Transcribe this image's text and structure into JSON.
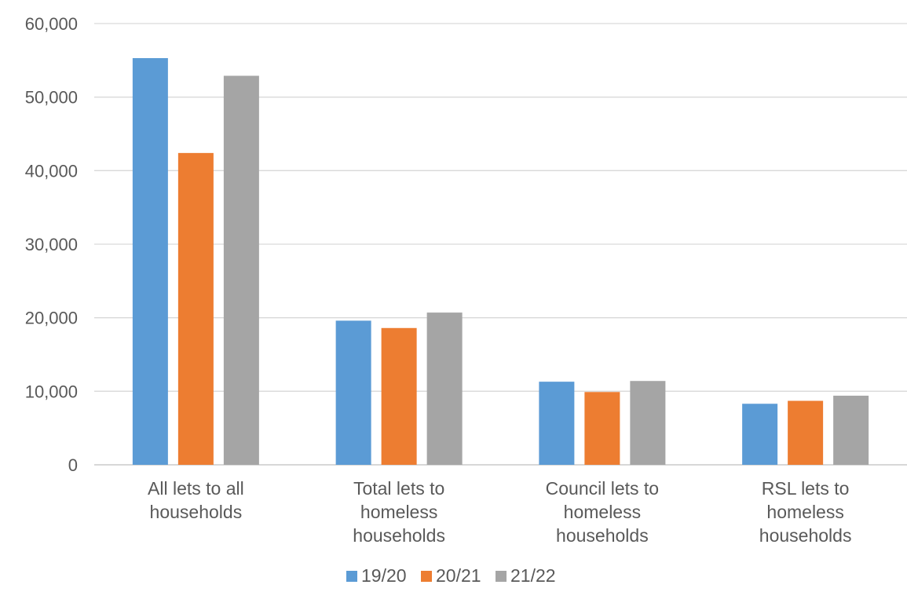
{
  "chart_data": {
    "type": "bar",
    "title": "",
    "xlabel": "",
    "ylabel": "",
    "ylim": [
      0,
      60000
    ],
    "yticks": [
      0,
      10000,
      20000,
      30000,
      40000,
      50000,
      60000
    ],
    "ytick_labels": [
      "0",
      "10,000",
      "20,000",
      "30,000",
      "40,000",
      "50,000",
      "60,000"
    ],
    "grid": true,
    "legend_position": "bottom",
    "categories": [
      [
        "All lets to all",
        "households"
      ],
      [
        "Total lets to",
        "homeless",
        "households"
      ],
      [
        "Council lets to",
        "homeless",
        "households"
      ],
      [
        "RSL lets to",
        "homeless",
        "households"
      ]
    ],
    "series": [
      {
        "name": "19/20",
        "color": "#5B9BD5",
        "values": [
          55300,
          19600,
          11300,
          8300
        ]
      },
      {
        "name": "20/21",
        "color": "#ED7D31",
        "values": [
          42400,
          18600,
          9900,
          8700
        ]
      },
      {
        "name": "21/22",
        "color": "#A5A5A5",
        "values": [
          52900,
          20700,
          11400,
          9400
        ]
      }
    ]
  }
}
